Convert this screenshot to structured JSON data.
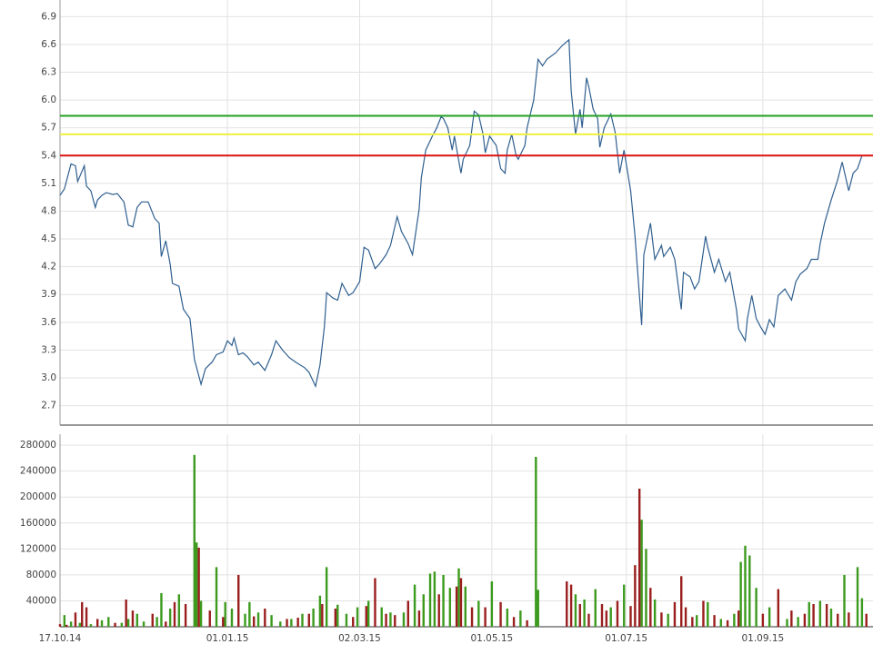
{
  "chart_data": [
    {
      "type": "line",
      "color": "#2f5f8f",
      "xlim": [
        0,
        369
      ],
      "ylim": [
        2.49,
        7.08
      ],
      "yticks": [
        {
          "value": 2.7,
          "label": "2.7"
        },
        {
          "value": 3,
          "label": "3.0"
        },
        3.3,
        3.6,
        3.9,
        4.2,
        4.5,
        4.8,
        5.1,
        5.4,
        5.7,
        {
          "value": 6,
          "label": "6.0"
        },
        6.3,
        6.6,
        6.9
      ],
      "xticks": [
        0,
        76,
        136,
        196,
        257,
        319
      ],
      "grid": true,
      "hlines": [
        {
          "value": 5.83,
          "color": "#22a022"
        },
        {
          "value": 5.63,
          "color": "#f0f040"
        },
        {
          "value": 5.4,
          "color": "#dd1111"
        }
      ],
      "x": [
        0,
        2,
        5,
        7,
        8,
        11,
        12,
        14,
        16,
        17,
        19,
        21,
        24,
        26,
        29,
        31,
        33,
        35,
        37,
        40,
        43,
        45,
        46,
        48,
        50,
        51,
        54,
        56,
        59,
        61,
        64,
        66,
        69,
        71,
        74,
        76,
        78,
        79,
        81,
        83,
        85,
        88,
        90,
        93,
        96,
        98,
        101,
        104,
        107,
        111,
        113,
        116,
        118,
        120,
        121,
        124,
        126,
        128,
        131,
        133,
        136,
        138,
        140,
        143,
        145,
        148,
        150,
        153,
        155,
        158,
        160,
        163,
        164,
        166,
        169,
        171,
        173,
        174,
        176,
        178,
        179,
        182,
        183,
        186,
        188,
        190,
        192,
        193,
        195,
        198,
        200,
        202,
        203,
        205,
        207,
        208,
        211,
        212,
        215,
        217,
        219,
        221,
        225,
        228,
        231,
        232,
        234,
        236,
        237,
        239,
        240,
        242,
        244,
        245,
        247,
        250,
        252,
        254,
        256,
        259,
        261,
        264,
        265,
        268,
        270,
        273,
        274,
        277,
        279,
        282,
        283,
        286,
        288,
        290,
        293,
        294,
        297,
        299,
        302,
        304,
        307,
        308,
        311,
        312,
        314,
        316,
        318,
        320,
        322,
        324,
        326,
        329,
        332,
        334,
        336,
        339,
        341,
        344,
        345,
        347,
        350,
        353,
        355,
        358,
        360,
        362,
        364
      ],
      "values": [
        4.97,
        5.04,
        5.31,
        5.29,
        5.12,
        5.29,
        5.07,
        5.02,
        4.84,
        4.92,
        4.97,
        5.0,
        4.98,
        4.99,
        4.9,
        4.65,
        4.63,
        4.84,
        4.9,
        4.9,
        4.72,
        4.67,
        4.31,
        4.48,
        4.23,
        4.02,
        3.99,
        3.74,
        3.64,
        3.2,
        2.93,
        3.1,
        3.17,
        3.25,
        3.28,
        3.4,
        3.35,
        3.43,
        3.25,
        3.27,
        3.23,
        3.14,
        3.17,
        3.08,
        3.25,
        3.4,
        3.3,
        3.22,
        3.17,
        3.11,
        3.06,
        2.91,
        3.14,
        3.55,
        3.92,
        3.86,
        3.84,
        4.02,
        3.89,
        3.92,
        4.04,
        4.41,
        4.38,
        4.18,
        4.23,
        4.33,
        4.43,
        4.74,
        4.58,
        4.45,
        4.33,
        4.82,
        5.16,
        5.46,
        5.61,
        5.7,
        5.82,
        5.8,
        5.7,
        5.46,
        5.61,
        5.21,
        5.36,
        5.51,
        5.88,
        5.84,
        5.63,
        5.43,
        5.61,
        5.51,
        5.26,
        5.21,
        5.46,
        5.63,
        5.4,
        5.36,
        5.51,
        5.7,
        6.0,
        6.44,
        6.37,
        6.44,
        6.51,
        6.59,
        6.65,
        6.1,
        5.63,
        5.9,
        5.7,
        6.24,
        6.14,
        5.9,
        5.8,
        5.49,
        5.7,
        5.85,
        5.65,
        5.21,
        5.46,
        5.02,
        4.53,
        3.57,
        4.33,
        4.67,
        4.28,
        4.43,
        4.31,
        4.41,
        4.28,
        3.74,
        4.14,
        4.09,
        3.96,
        4.04,
        4.53,
        4.41,
        4.14,
        4.28,
        4.04,
        4.14,
        3.74,
        3.53,
        3.4,
        3.64,
        3.89,
        3.64,
        3.55,
        3.47,
        3.63,
        3.55,
        3.89,
        3.96,
        3.84,
        4.04,
        4.12,
        4.18,
        4.28,
        4.28,
        4.45,
        4.67,
        4.92,
        5.14,
        5.33,
        5.02,
        5.21,
        5.26,
        5.4
      ]
    },
    {
      "type": "bar",
      "xlim": [
        0,
        369
      ],
      "ylim": [
        0,
        297000
      ],
      "yticks": [
        40000,
        80000,
        120000,
        160000,
        200000,
        240000,
        280000
      ],
      "xticks": [
        {
          "value": 0,
          "label": "17.10.14"
        },
        {
          "value": 76,
          "label": "01.01.15"
        },
        {
          "value": 136,
          "label": "02.03.15"
        },
        {
          "value": 196,
          "label": "01.05.15"
        },
        {
          "value": 257,
          "label": "01.07.15"
        },
        {
          "value": 319,
          "label": "01.09.15"
        }
      ],
      "grid": true,
      "series": [
        {
          "color": "#3c9a1e",
          "x": [
            2,
            5,
            9,
            14,
            19,
            22,
            28,
            31,
            35,
            38,
            44,
            46,
            50,
            54,
            61,
            62,
            64,
            71,
            75,
            78,
            84,
            86,
            90,
            96,
            100,
            105,
            110,
            115,
            118,
            121,
            126,
            130,
            135,
            140,
            146,
            150,
            156,
            161,
            165,
            168,
            170,
            174,
            177,
            181,
            184,
            190,
            196,
            203,
            209,
            216,
            217,
            234,
            238,
            243,
            250,
            256,
            264,
            266,
            270,
            276,
            289,
            294,
            300,
            306,
            309,
            311,
            313,
            316,
            322,
            330,
            335,
            340,
            345,
            350,
            356,
            362,
            364
          ],
          "values": [
            18000,
            8000,
            6000,
            4000,
            10000,
            15000,
            6000,
            12000,
            20000,
            8000,
            15000,
            52000,
            28000,
            50000,
            265000,
            130000,
            40000,
            92000,
            38000,
            28000,
            20000,
            38000,
            22000,
            18000,
            8000,
            12000,
            20000,
            28000,
            48000,
            92000,
            34000,
            20000,
            30000,
            40000,
            30000,
            22000,
            22000,
            65000,
            50000,
            82000,
            85000,
            80000,
            60000,
            90000,
            62000,
            40000,
            70000,
            28000,
            25000,
            262000,
            57000,
            50000,
            42000,
            58000,
            30000,
            65000,
            165000,
            120000,
            42000,
            20000,
            18000,
            38000,
            12000,
            20000,
            100000,
            125000,
            110000,
            60000,
            30000,
            12000,
            15000,
            38000,
            40000,
            28000,
            80000,
            92000,
            44000
          ]
        },
        {
          "color": "#9a1e1e",
          "x": [
            0,
            3,
            7,
            10,
            12,
            17,
            25,
            30,
            33,
            42,
            48,
            52,
            57,
            63,
            68,
            74,
            81,
            88,
            93,
            103,
            108,
            113,
            119,
            125,
            133,
            139,
            143,
            148,
            152,
            158,
            163,
            172,
            180,
            182,
            187,
            193,
            200,
            206,
            212,
            230,
            232,
            236,
            240,
            246,
            248,
            253,
            259,
            261,
            263,
            268,
            273,
            279,
            282,
            284,
            287,
            292,
            297,
            303,
            308,
            319,
            326,
            332,
            338,
            342,
            348,
            353,
            358,
            366
          ],
          "values": [
            4000,
            3000,
            22000,
            38000,
            30000,
            12000,
            6000,
            42000,
            25000,
            20000,
            8000,
            38000,
            35000,
            122000,
            25000,
            15000,
            80000,
            16000,
            28000,
            12000,
            14000,
            20000,
            35000,
            28000,
            15000,
            32000,
            75000,
            20000,
            18000,
            40000,
            25000,
            50000,
            62000,
            75000,
            30000,
            30000,
            38000,
            15000,
            10000,
            70000,
            65000,
            35000,
            20000,
            35000,
            25000,
            40000,
            32000,
            95000,
            213000,
            60000,
            22000,
            38000,
            78000,
            30000,
            15000,
            40000,
            18000,
            10000,
            25000,
            20000,
            58000,
            25000,
            20000,
            35000,
            35000,
            20000,
            22000,
            20000
          ]
        }
      ]
    }
  ]
}
